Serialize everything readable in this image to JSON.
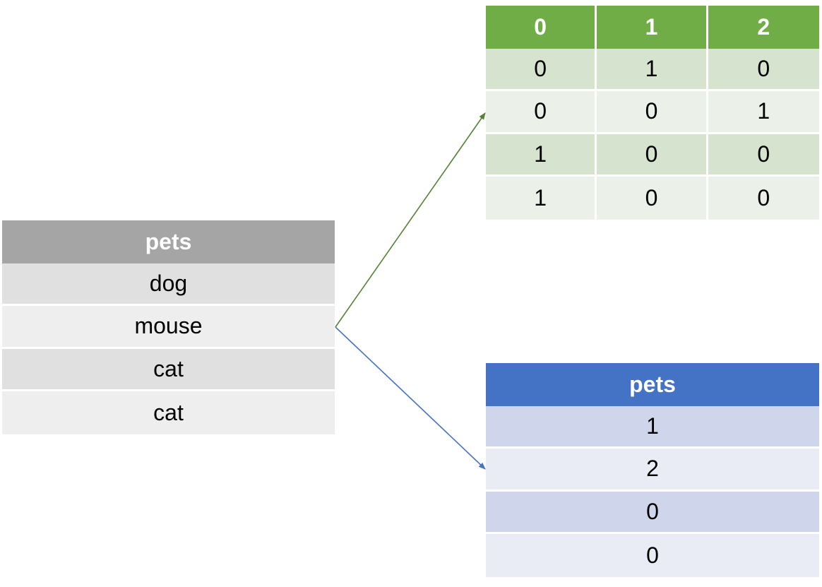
{
  "source_table": {
    "header": "pets",
    "rows": [
      "dog",
      "mouse",
      "cat",
      "cat"
    ]
  },
  "onehot_table": {
    "headers": [
      "0",
      "1",
      "2"
    ],
    "rows": [
      [
        "0",
        "1",
        "0"
      ],
      [
        "0",
        "0",
        "1"
      ],
      [
        "1",
        "0",
        "0"
      ],
      [
        "1",
        "0",
        "0"
      ]
    ]
  },
  "label_table": {
    "header": "pets",
    "rows": [
      "1",
      "2",
      "0",
      "0"
    ]
  },
  "colors": {
    "source_header": "#a5a5a5",
    "onehot_header": "#70ad47",
    "label_header": "#4472c4",
    "onehot_arrow": "#548235",
    "label_arrow": "#4472c4"
  }
}
